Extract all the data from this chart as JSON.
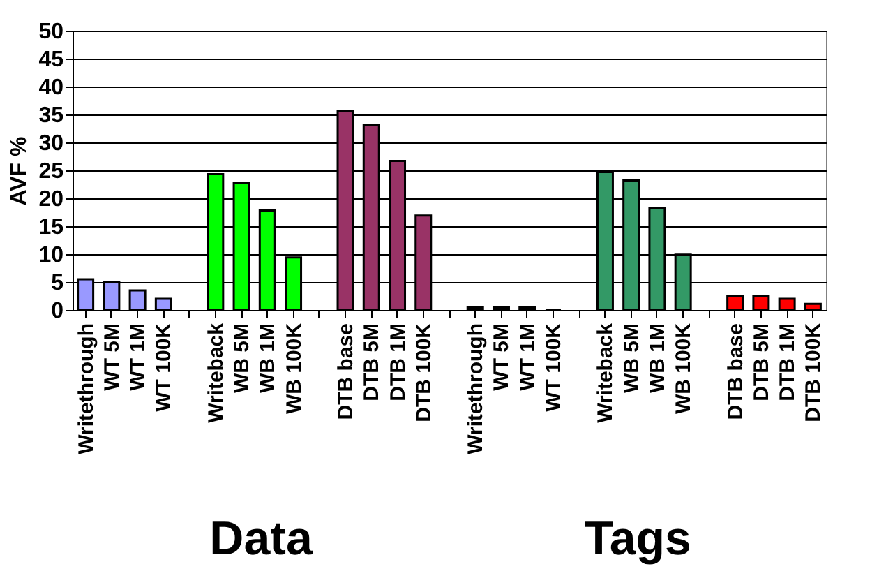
{
  "chart_data": {
    "type": "bar",
    "ylabel": "AVF %",
    "categories": [
      "Writethrough",
      "WT 5M",
      "WT 1M",
      "WT 100K",
      null,
      "Writeback",
      "WB 5M",
      "WB 1M",
      "WB 100K",
      null,
      "DTB base",
      "DTB 5M",
      "DTB 1M",
      "DTB 100K",
      null,
      "Writethrough",
      "WT 5M",
      "WT 1M",
      "WT 100K",
      null,
      "Writeback",
      "WB 5M",
      "WB 1M",
      "WB 100K",
      null,
      "DTB base",
      "DTB 5M",
      "DTB 1M",
      "DTB 100K"
    ],
    "series": [
      {
        "color": "#9999ff",
        "values": [
          5.5,
          5.0,
          3.5,
          2.0,
          null,
          null,
          null,
          null,
          null,
          null,
          null,
          null,
          null,
          null,
          null,
          null,
          null,
          null,
          null,
          null,
          null,
          null,
          null,
          null,
          null,
          null,
          null,
          null,
          null
        ]
      },
      {
        "color": "#00ff00",
        "values": [
          null,
          null,
          null,
          null,
          null,
          24.3,
          22.8,
          17.8,
          9.4,
          null,
          null,
          null,
          null,
          null,
          null,
          null,
          null,
          null,
          null,
          null,
          null,
          null,
          null,
          null,
          null,
          null,
          null,
          null,
          null
        ]
      },
      {
        "color": "#993366",
        "values": [
          null,
          null,
          null,
          null,
          null,
          null,
          null,
          null,
          null,
          null,
          35.7,
          33.2,
          26.7,
          16.9,
          null,
          null,
          null,
          null,
          null,
          null,
          null,
          null,
          null,
          null,
          null,
          null,
          null,
          null,
          null
        ]
      },
      {
        "color": "#000000",
        "values": [
          null,
          null,
          null,
          null,
          null,
          null,
          null,
          null,
          null,
          null,
          null,
          null,
          null,
          null,
          null,
          0.5,
          0.5,
          0.5,
          0,
          null,
          null,
          null,
          null,
          null,
          null,
          null,
          null,
          null,
          null
        ]
      },
      {
        "color": "#339966",
        "values": [
          null,
          null,
          null,
          null,
          null,
          null,
          null,
          null,
          null,
          null,
          null,
          null,
          null,
          null,
          null,
          null,
          null,
          null,
          null,
          null,
          24.7,
          23.2,
          18.3,
          9.9,
          null,
          null,
          null,
          null,
          null
        ]
      },
      {
        "color": "#ff0000",
        "values": [
          null,
          null,
          null,
          null,
          null,
          null,
          null,
          null,
          null,
          null,
          null,
          null,
          null,
          null,
          null,
          null,
          null,
          null,
          null,
          null,
          null,
          null,
          null,
          null,
          null,
          2.5,
          2.5,
          2.0,
          1.1
        ]
      }
    ],
    "ylim": [
      0,
      50
    ],
    "yticks": [
      0,
      5,
      10,
      15,
      20,
      25,
      30,
      35,
      40,
      45,
      50
    ],
    "grid": "y",
    "annotations": [
      "Data",
      "Tags"
    ]
  }
}
